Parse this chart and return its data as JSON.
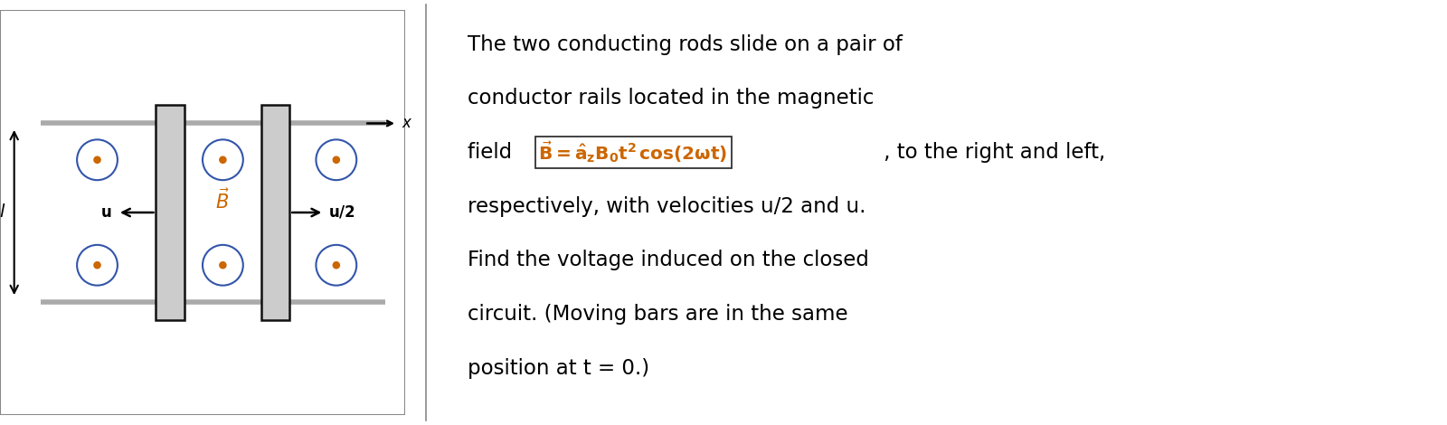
{
  "fig_width": 16.0,
  "fig_height": 4.7,
  "dpi": 100,
  "bg_color": "#ffffff",
  "rail_color": "#aaaaaa",
  "rail_linewidth": 4,
  "rod_color": "#cccccc",
  "rod_edge_color": "#111111",
  "dot_ring_color": "#3355aa",
  "dot_center_color": "#cc6600",
  "formula_color": "#cc6600",
  "text_color": "#000000",
  "line1": "The two conducting rods slide on a pair of",
  "line2": "conductor rails located in the magnetic",
  "line3_pre": "field ",
  "line3_post": " , to the right and left,",
  "line4": "respectively, with velocities u/2 and u.",
  "line5": "Find the voltage induced on the closed",
  "line6": "circuit. (Moving bars are in the same",
  "line7": "position at t = 0.)"
}
